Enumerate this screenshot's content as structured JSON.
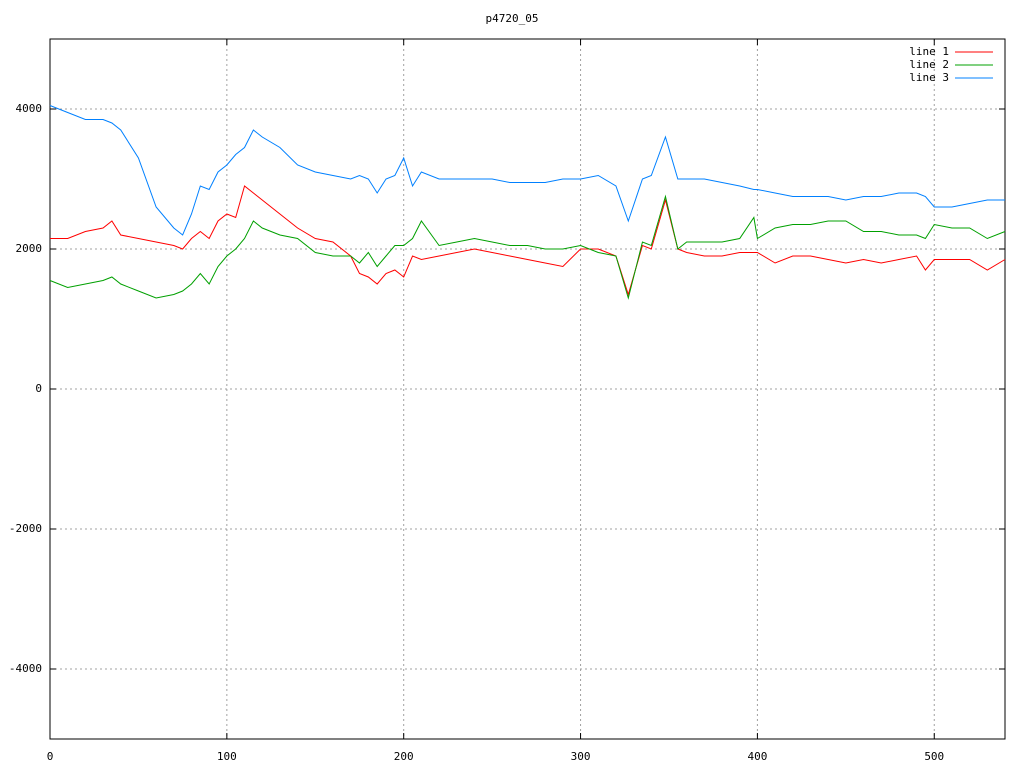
{
  "chart_data": {
    "type": "line",
    "title": "p4720_05",
    "x": [
      0,
      10,
      20,
      30,
      35,
      40,
      50,
      60,
      70,
      75,
      80,
      85,
      90,
      95,
      100,
      105,
      110,
      115,
      120,
      130,
      140,
      150,
      160,
      170,
      175,
      180,
      185,
      190,
      195,
      200,
      205,
      210,
      220,
      230,
      240,
      250,
      260,
      270,
      280,
      290,
      300,
      310,
      320,
      327,
      335,
      340,
      348,
      355,
      360,
      370,
      380,
      390,
      398,
      400,
      410,
      420,
      430,
      440,
      450,
      460,
      470,
      480,
      490,
      495,
      500,
      510,
      520,
      530,
      540
    ],
    "series": [
      {
        "name": "line 1",
        "color": "#ff0000",
        "values": [
          2150,
          2150,
          2250,
          2300,
          2400,
          2200,
          2150,
          2100,
          2050,
          2000,
          2150,
          2250,
          2150,
          2400,
          2500,
          2450,
          2900,
          2800,
          2700,
          2500,
          2300,
          2150,
          2100,
          1900,
          1650,
          1600,
          1500,
          1650,
          1700,
          1600,
          1900,
          1850,
          1900,
          1950,
          2000,
          1950,
          1900,
          1850,
          1800,
          1750,
          2000,
          2000,
          1900,
          1350,
          2050,
          2000,
          2700,
          2000,
          1950,
          1900,
          1900,
          1950,
          1950,
          1950,
          1800,
          1900,
          1900,
          1850,
          1800,
          1850,
          1800,
          1850,
          1900,
          1700,
          1850,
          1850,
          1850,
          1700,
          1850
        ]
      },
      {
        "name": "line 2",
        "color": "#00a000",
        "values": [
          1550,
          1450,
          1500,
          1550,
          1600,
          1500,
          1400,
          1300,
          1350,
          1400,
          1500,
          1650,
          1500,
          1750,
          1900,
          2000,
          2150,
          2400,
          2300,
          2200,
          2150,
          1950,
          1900,
          1900,
          1800,
          1950,
          1750,
          1900,
          2050,
          2050,
          2150,
          2400,
          2050,
          2100,
          2150,
          2100,
          2050,
          2050,
          2000,
          2000,
          2050,
          1950,
          1900,
          1300,
          2100,
          2050,
          2750,
          2000,
          2100,
          2100,
          2100,
          2150,
          2450,
          2150,
          2300,
          2350,
          2350,
          2400,
          2400,
          2250,
          2250,
          2200,
          2200,
          2150,
          2350,
          2300,
          2300,
          2150,
          2250
        ]
      },
      {
        "name": "line 3",
        "color": "#0080ff",
        "values": [
          4050,
          3950,
          3850,
          3850,
          3800,
          3700,
          3300,
          2600,
          2300,
          2200,
          2500,
          2900,
          2850,
          3100,
          3200,
          3350,
          3450,
          3700,
          3600,
          3450,
          3200,
          3100,
          3050,
          3000,
          3050,
          3000,
          2800,
          3000,
          3050,
          3300,
          2900,
          3100,
          3000,
          3000,
          3000,
          3000,
          2950,
          2950,
          2950,
          3000,
          3000,
          3050,
          2900,
          2400,
          3000,
          3050,
          3600,
          3000,
          3000,
          3000,
          2950,
          2900,
          2850,
          2850,
          2800,
          2750,
          2750,
          2750,
          2700,
          2750,
          2750,
          2800,
          2800,
          2750,
          2600,
          2600,
          2650,
          2700,
          2700
        ]
      }
    ],
    "xlim": [
      0,
      540
    ],
    "ylim": [
      -5000,
      5000
    ],
    "xticks": [
      0,
      100,
      200,
      300,
      400,
      500
    ],
    "yticks": [
      -4000,
      -2000,
      0,
      2000,
      4000
    ],
    "grid": true,
    "legend": "top-right"
  }
}
